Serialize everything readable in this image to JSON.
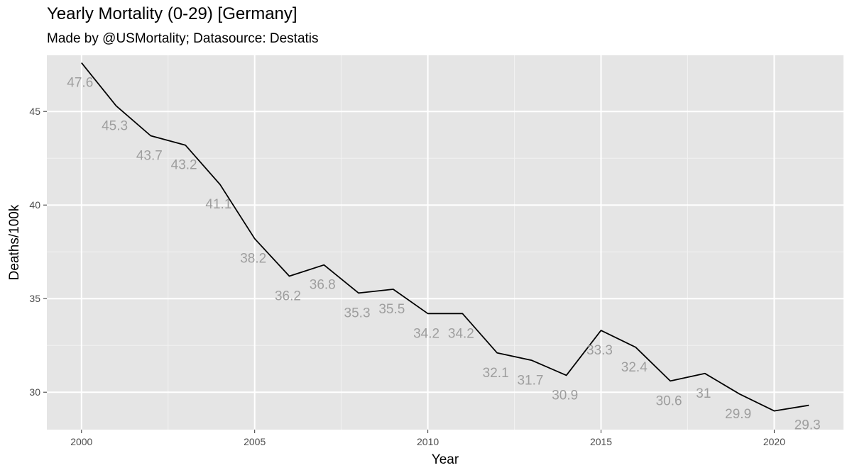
{
  "chart_data": {
    "type": "line",
    "title": "Yearly Mortality (0-29) [Germany]",
    "subtitle": "Made by @USMortality; Datasource: Destatis",
    "xlabel": "Year",
    "ylabel": "Deaths/100k",
    "xlim": [
      1999,
      2022
    ],
    "ylim": [
      28,
      48
    ],
    "x_ticks": [
      2000,
      2005,
      2010,
      2015,
      2020
    ],
    "y_ticks": [
      30,
      35,
      40,
      45
    ],
    "grid": true,
    "background": "#e5e5e5",
    "line_color": "#000000",
    "label_color": "#9e9e9e",
    "x": [
      2000,
      2001,
      2002,
      2003,
      2004,
      2005,
      2006,
      2007,
      2008,
      2009,
      2010,
      2011,
      2012,
      2013,
      2014,
      2015,
      2016,
      2017,
      2018,
      2019,
      2020,
      2021
    ],
    "values": [
      47.6,
      45.3,
      43.7,
      43.2,
      41.1,
      38.2,
      36.2,
      36.8,
      35.3,
      35.5,
      34.2,
      34.2,
      32.1,
      31.7,
      30.9,
      33.3,
      32.4,
      30.6,
      31,
      29.9,
      29,
      29.3
    ],
    "labels": [
      "47.6",
      "45.3",
      "43.7",
      "43.2",
      "41.1",
      "38.2",
      "36.2",
      "36.8",
      "35.3",
      "35.5",
      "34.2",
      "34.2",
      "32.1",
      "31.7",
      "30.9",
      "33.3",
      "32.4",
      "30.6",
      "31",
      "29.9",
      "",
      "29.3"
    ]
  }
}
